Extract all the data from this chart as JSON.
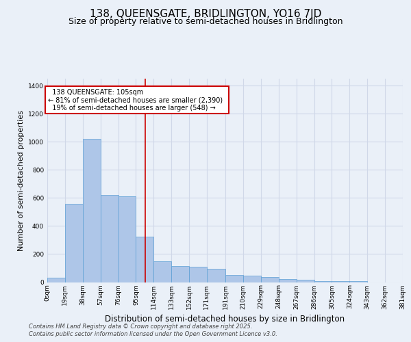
{
  "title": "138, QUEENSGATE, BRIDLINGTON, YO16 7JD",
  "subtitle": "Size of property relative to semi-detached houses in Bridlington",
  "xlabel": "Distribution of semi-detached houses by size in Bridlington",
  "ylabel": "Number of semi-detached properties",
  "property_label": "138 QUEENSGATE: 105sqm",
  "pct_smaller": 81,
  "pct_larger": 19,
  "count_smaller": 2390,
  "count_larger": 548,
  "bin_edges": [
    0,
    19,
    38,
    57,
    76,
    95,
    114,
    133,
    152,
    171,
    191,
    210,
    229,
    248,
    267,
    286,
    305,
    324,
    343,
    362,
    381
  ],
  "bin_labels": [
    "0sqm",
    "19sqm",
    "38sqm",
    "57sqm",
    "76sqm",
    "95sqm",
    "114sqm",
    "133sqm",
    "152sqm",
    "171sqm",
    "191sqm",
    "210sqm",
    "229sqm",
    "248sqm",
    "267sqm",
    "286sqm",
    "305sqm",
    "324sqm",
    "343sqm",
    "362sqm",
    "381sqm"
  ],
  "bar_heights": [
    30,
    560,
    1020,
    620,
    610,
    325,
    150,
    115,
    110,
    95,
    50,
    45,
    35,
    20,
    15,
    5,
    5,
    5,
    0,
    0
  ],
  "bar_color": "#aec6e8",
  "bar_edge_color": "#5a9fd4",
  "vline_color": "#cc0000",
  "vline_x": 105,
  "ylim": [
    0,
    1450
  ],
  "yticks": [
    0,
    200,
    400,
    600,
    800,
    1000,
    1200,
    1400
  ],
  "annotation_box_color": "#cc0000",
  "grid_color": "#d0d8e8",
  "background_color": "#eaf0f8",
  "footer_line1": "Contains HM Land Registry data © Crown copyright and database right 2025.",
  "footer_line2": "Contains public sector information licensed under the Open Government Licence v3.0.",
  "title_fontsize": 11,
  "subtitle_fontsize": 9,
  "tick_fontsize": 6.5,
  "ylabel_fontsize": 8,
  "xlabel_fontsize": 8.5
}
